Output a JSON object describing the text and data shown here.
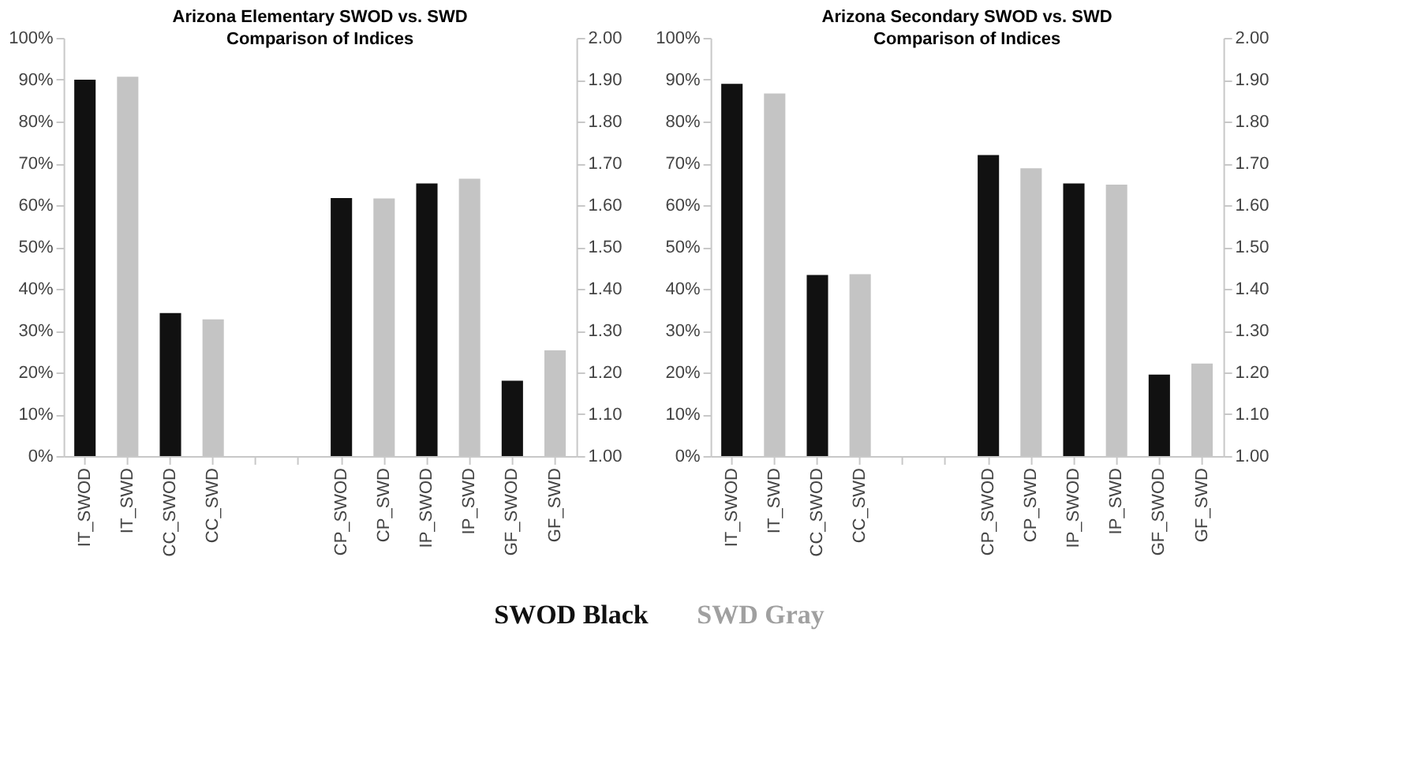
{
  "chart_data": [
    {
      "type": "bar",
      "title": "Arizona Elementary SWOD vs. SWD\nComparison of Indices",
      "categories": [
        "IT_SWOD",
        "IT_SWD",
        "CC_SWOD",
        "CC_SWD",
        null,
        null,
        "CP_SWOD",
        "CP_SWD",
        "IP_SWOD",
        "IP_SWD",
        "GF_SWOD",
        "GF_SWD"
      ],
      "series": [
        {
          "values": [
            90,
            90.7,
            34.2,
            32.7,
            null,
            null,
            null,
            null,
            null,
            null,
            null,
            null
          ],
          "colors": [
            "#111111",
            "#c4c4c4",
            "#111111",
            "#c4c4c4",
            null,
            null,
            null,
            null,
            null,
            null,
            null,
            null
          ]
        },
        {
          "axis": "y2",
          "values": [
            null,
            null,
            null,
            null,
            null,
            null,
            1.617,
            1.616,
            1.652,
            1.663,
            1.18,
            1.253
          ],
          "colors": [
            null,
            null,
            null,
            null,
            null,
            null,
            "#111111",
            "#c4c4c4",
            "#111111",
            "#c4c4c4",
            "#111111",
            "#c4c4c4"
          ]
        }
      ],
      "ylim": [
        0,
        100
      ],
      "yticks": [
        {
          "value": 0,
          "label": "0%"
        },
        {
          "value": 10,
          "label": "10%"
        },
        {
          "value": 20,
          "label": "20%"
        },
        {
          "value": 30,
          "label": "30%"
        },
        {
          "value": 40,
          "label": "40%"
        },
        {
          "value": 50,
          "label": "50%"
        },
        {
          "value": 60,
          "label": "60%"
        },
        {
          "value": 70,
          "label": "70%"
        },
        {
          "value": 80,
          "label": "80%"
        },
        {
          "value": 90,
          "label": "90%"
        },
        {
          "value": 100,
          "label": "100%"
        }
      ],
      "y2lim": [
        1,
        2
      ],
      "y2ticks": [
        {
          "value": 1,
          "label": "1.00"
        },
        {
          "value": 1.1,
          "label": "1.10"
        },
        {
          "value": 1.2,
          "label": "1.20"
        },
        {
          "value": 1.3,
          "label": "1.30"
        },
        {
          "value": 1.4,
          "label": "1.40"
        },
        {
          "value": 1.5,
          "label": "1.50"
        },
        {
          "value": 1.6,
          "label": "1.60"
        },
        {
          "value": 1.7,
          "label": "1.70"
        },
        {
          "value": 1.8,
          "label": "1.80"
        },
        {
          "value": 1.9,
          "label": "1.90"
        },
        {
          "value": 2,
          "label": "2.00"
        }
      ],
      "grid": false,
      "annotations": [
        "SWOD Black",
        "SWD Gray"
      ]
    },
    {
      "type": "bar",
      "title": "Arizona Secondary SWOD vs. SWD\nComparison of Indices",
      "categories": [
        "IT_SWOD",
        "IT_SWD",
        "CC_SWOD",
        "CC_SWD",
        null,
        null,
        "CP_SWOD",
        "CP_SWD",
        "IP_SWOD",
        "IP_SWD",
        "GF_SWOD",
        "GF_SWD"
      ],
      "series": [
        {
          "values": [
            89,
            86.7,
            43.3,
            43.5,
            null,
            null,
            null,
            null,
            null,
            null,
            null,
            null
          ],
          "colors": [
            "#111111",
            "#c4c4c4",
            "#111111",
            "#c4c4c4",
            null,
            null,
            null,
            null,
            null,
            null,
            null,
            null
          ]
        },
        {
          "axis": "y2",
          "values": [
            null,
            null,
            null,
            null,
            null,
            null,
            1.72,
            1.688,
            1.652,
            1.649,
            1.195,
            1.221
          ],
          "colors": [
            null,
            null,
            null,
            null,
            null,
            null,
            "#111111",
            "#c4c4c4",
            "#111111",
            "#c4c4c4",
            "#111111",
            "#c4c4c4"
          ]
        }
      ],
      "ylim": [
        0,
        100
      ],
      "yticks": [
        {
          "value": 0,
          "label": "0%"
        },
        {
          "value": 10,
          "label": "10%"
        },
        {
          "value": 20,
          "label": "20%"
        },
        {
          "value": 30,
          "label": "30%"
        },
        {
          "value": 40,
          "label": "40%"
        },
        {
          "value": 50,
          "label": "50%"
        },
        {
          "value": 60,
          "label": "60%"
        },
        {
          "value": 70,
          "label": "70%"
        },
        {
          "value": 80,
          "label": "80%"
        },
        {
          "value": 90,
          "label": "90%"
        },
        {
          "value": 100,
          "label": "100%"
        }
      ],
      "y2lim": [
        1,
        2
      ],
      "y2ticks": [
        {
          "value": 1,
          "label": "1.00"
        },
        {
          "value": 1.1,
          "label": "1.10"
        },
        {
          "value": 1.2,
          "label": "1.20"
        },
        {
          "value": 1.3,
          "label": "1.30"
        },
        {
          "value": 1.4,
          "label": "1.40"
        },
        {
          "value": 1.5,
          "label": "1.50"
        },
        {
          "value": 1.6,
          "label": "1.60"
        },
        {
          "value": 1.7,
          "label": "1.70"
        },
        {
          "value": 1.8,
          "label": "1.80"
        },
        {
          "value": 1.9,
          "label": "1.90"
        },
        {
          "value": 2,
          "label": "2.00"
        }
      ],
      "grid": false
    }
  ]
}
